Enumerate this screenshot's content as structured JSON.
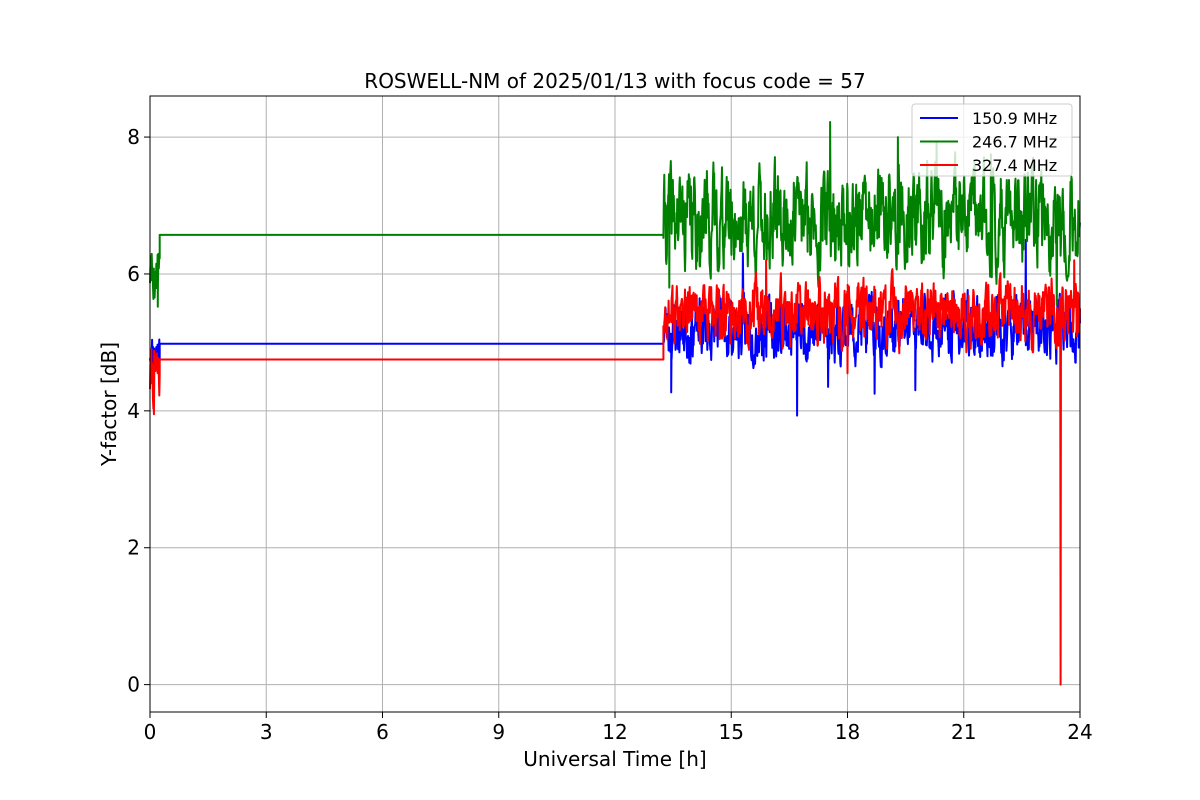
{
  "chart_data": {
    "type": "line",
    "title": "ROSWELL-NM of 2025/01/13 with focus code = 57",
    "xlabel": "Universal Time [h]",
    "ylabel": "Y-factor [dB]",
    "xlim": [
      0,
      24
    ],
    "ylim": [
      -0.4,
      8.6
    ],
    "xticks": [
      "0",
      "3",
      "6",
      "9",
      "12",
      "15",
      "18",
      "21",
      "24"
    ],
    "yticks": [
      "0",
      "2",
      "4",
      "6",
      "8"
    ],
    "grid": true,
    "legend_position": "top-right",
    "series": [
      {
        "name": "150.9 MHz",
        "color": "#0000ff",
        "segments": [
          {
            "x0": 0.0,
            "x1": 0.25,
            "base": 4.9,
            "amp": 0.25,
            "seed": 11
          },
          {
            "x0": 0.25,
            "x1": 13.25,
            "base": 4.98,
            "amp": 0,
            "seed": 0
          },
          {
            "x0": 13.25,
            "x1": 24.0,
            "base": 5.2,
            "amp": 0.35,
            "seed": 23
          }
        ],
        "spikes": [
          {
            "x": 13.45,
            "y": 4.27
          },
          {
            "x": 15.3,
            "y": 6.3
          },
          {
            "x": 16.7,
            "y": 3.93
          },
          {
            "x": 17.5,
            "y": 4.35
          },
          {
            "x": 18.7,
            "y": 4.25
          },
          {
            "x": 19.75,
            "y": 4.3
          },
          {
            "x": 22.6,
            "y": 6.5
          },
          {
            "x": 23.7,
            "y": 5.15
          }
        ]
      },
      {
        "name": "246.7 MHz",
        "color": "#008000",
        "segments": [
          {
            "x0": 0.0,
            "x1": 0.25,
            "base": 6.05,
            "amp": 0.35,
            "seed": 5
          },
          {
            "x0": 0.25,
            "x1": 13.25,
            "base": 6.57,
            "amp": 0,
            "seed": 0
          },
          {
            "x0": 13.25,
            "x1": 24.0,
            "base": 6.8,
            "amp": 0.55,
            "seed": 41
          }
        ],
        "spikes": [
          {
            "x": 0.2,
            "y": 5.52
          },
          {
            "x": 13.4,
            "y": 5.8
          },
          {
            "x": 17.55,
            "y": 8.22
          },
          {
            "x": 19.3,
            "y": 8.0
          },
          {
            "x": 20.3,
            "y": 7.92
          },
          {
            "x": 21.7,
            "y": 7.75
          },
          {
            "x": 23.4,
            "y": 5.55
          }
        ]
      },
      {
        "name": "327.4 MHz",
        "color": "#ff0000",
        "segments": [
          {
            "x0": 0.0,
            "x1": 0.25,
            "base": 4.5,
            "amp": 0.35,
            "seed": 7
          },
          {
            "x0": 0.25,
            "x1": 13.25,
            "base": 4.75,
            "amp": 0,
            "seed": 0
          },
          {
            "x0": 13.25,
            "x1": 24.0,
            "base": 5.4,
            "amp": 0.35,
            "seed": 77
          }
        ],
        "spikes": [
          {
            "x": 0.1,
            "y": 3.95
          },
          {
            "x": 15.9,
            "y": 6.2
          },
          {
            "x": 18.0,
            "y": 4.55
          },
          {
            "x": 23.5,
            "y": 0.0
          },
          {
            "x": 23.85,
            "y": 6.2
          }
        ]
      }
    ]
  }
}
